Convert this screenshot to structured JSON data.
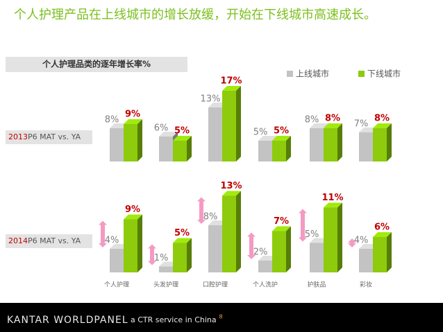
{
  "title": "个人护理产品在上线城市的增长放缓，开始在下线城市高速成长。",
  "chart_data": {
    "type": "bar",
    "title": "个人护理品类的逐年增长率%",
    "categories": [
      "个人护理",
      "头发护理",
      "口腔护理",
      "个人洗护",
      "护肤品",
      "彩妆"
    ],
    "legend": "top-right",
    "rows": [
      {
        "year": "2013",
        "label": "P6 MAT vs. YA"
      },
      {
        "year": "2014",
        "label": "P6 MAT vs. YA"
      }
    ],
    "series": [
      {
        "name": "上线城市",
        "color": "#c3c3c3",
        "values": [
          [
            8,
            6,
            13,
            5,
            8,
            7
          ],
          [
            4,
            1,
            8,
            2,
            5,
            4
          ]
        ],
        "value_labels": [
          [
            "8%",
            "6%",
            "13%",
            "5%",
            "8%",
            "7%"
          ],
          [
            "4%",
            "1%",
            "8%",
            "2%",
            "5%",
            "4%"
          ]
        ]
      },
      {
        "name": "下线城市",
        "color": "#8dcb0c",
        "values": [
          [
            9,
            5,
            17,
            5,
            8,
            8
          ],
          [
            9,
            5,
            13,
            7,
            11,
            6
          ]
        ],
        "value_labels": [
          [
            "9%",
            "5%",
            "17%",
            "5%",
            "8%",
            "8%"
          ],
          [
            "9%",
            "5%",
            "13%",
            "7%",
            "11%",
            "6%"
          ]
        ]
      }
    ]
  },
  "footer": {
    "brand": "KANTAR WORLDPANEL",
    "tagline": "a CTR service in China",
    "page": "8"
  }
}
